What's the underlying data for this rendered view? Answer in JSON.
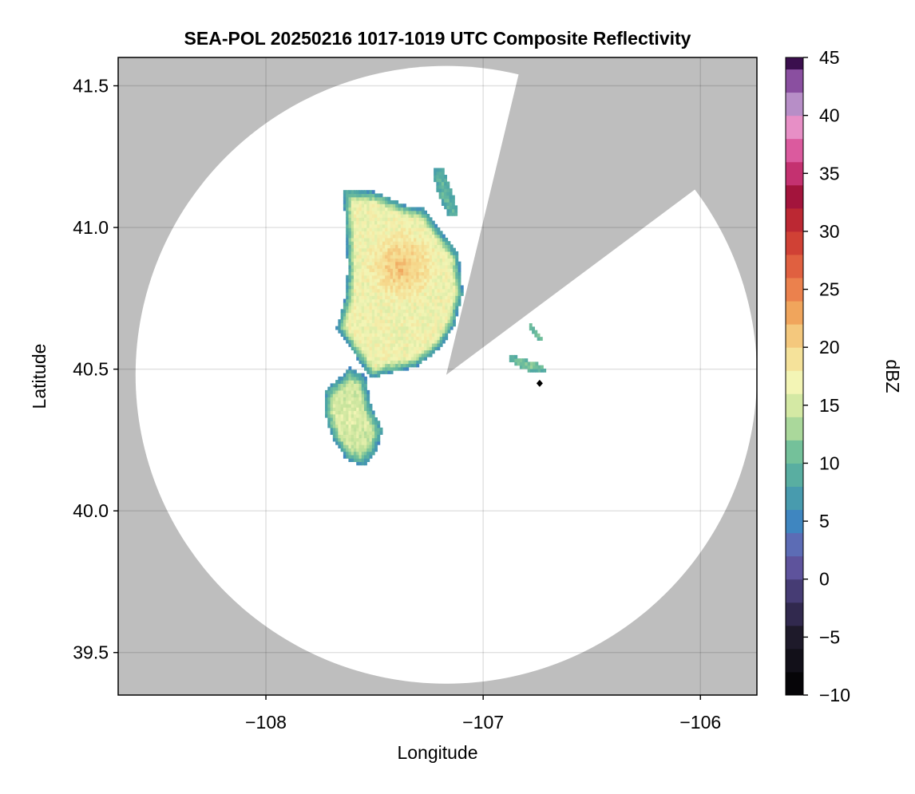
{
  "chart_data": {
    "type": "heatmap",
    "title": "SEA-POL 20250216 1017-1019 UTC Composite Reflectivity",
    "xlabel": "Longitude",
    "ylabel": "Latitude",
    "xlim": [
      -108.68,
      -105.74
    ],
    "ylim": [
      39.35,
      41.6
    ],
    "x_ticks": [
      -108,
      -107,
      -106
    ],
    "x_tick_labels": [
      "−108",
      "−107",
      "−106"
    ],
    "y_ticks": [
      39.5,
      40.0,
      40.5,
      41.0,
      41.5
    ],
    "y_tick_labels": [
      "39.5",
      "40.0",
      "40.5",
      "41.0",
      "41.5"
    ],
    "grid": true,
    "background_color": "#bebebe",
    "radar": {
      "center_lon": -107.17,
      "center_lat": 40.48,
      "range_deg_lat": 1.09,
      "range_deg_lon": 1.43,
      "blocked_sectors": [
        {
          "from_lon": -106.84,
          "from_lat": 41.53,
          "to_lon": -106.05,
          "to_lat": 41.12
        }
      ]
    },
    "radar_marker": {
      "lon": -106.74,
      "lat": 40.45
    },
    "colorbar": {
      "label": "dBZ",
      "min": -10,
      "max": 45,
      "ticks": [
        -10,
        -5,
        0,
        5,
        10,
        15,
        20,
        25,
        30,
        35,
        40,
        45
      ],
      "tick_labels": [
        "−10",
        "−5",
        "0",
        "5",
        "10",
        "15",
        "20",
        "25",
        "30",
        "35",
        "40",
        "45"
      ],
      "step": 2,
      "colors": [
        {
          "v": -10,
          "c": "#000000"
        },
        {
          "v": -5,
          "c": "#1e1a2a"
        },
        {
          "v": -2,
          "c": "#3a3060"
        },
        {
          "v": 2,
          "c": "#6a5fb0"
        },
        {
          "v": 5,
          "c": "#3f86c0"
        },
        {
          "v": 8,
          "c": "#4ca5a5"
        },
        {
          "v": 11,
          "c": "#74c19a"
        },
        {
          "v": 14,
          "c": "#c5e39b"
        },
        {
          "v": 17,
          "c": "#f3f5b5"
        },
        {
          "v": 20,
          "c": "#f6d98d"
        },
        {
          "v": 23,
          "c": "#f0a55c"
        },
        {
          "v": 26,
          "c": "#e86f45"
        },
        {
          "v": 30,
          "c": "#c8322f"
        },
        {
          "v": 33,
          "c": "#a3143c"
        },
        {
          "v": 36,
          "c": "#d53f8a"
        },
        {
          "v": 39,
          "c": "#e78fc6"
        },
        {
          "v": 41,
          "c": "#b78ec7"
        },
        {
          "v": 43,
          "c": "#8a4fa0"
        },
        {
          "v": 45,
          "c": "#3b0f4e"
        }
      ]
    },
    "echoes": [
      {
        "name": "main-echo-north",
        "polygon": [
          [
            -107.65,
            41.13
          ],
          [
            -107.5,
            41.12
          ],
          [
            -107.35,
            41.07
          ],
          [
            -107.28,
            41.06
          ],
          [
            -107.2,
            40.98
          ],
          [
            -107.12,
            40.9
          ],
          [
            -107.1,
            40.76
          ],
          [
            -107.14,
            40.65
          ],
          [
            -107.2,
            40.57
          ],
          [
            -107.32,
            40.5
          ],
          [
            -107.45,
            40.48
          ],
          [
            -107.52,
            40.46
          ],
          [
            -107.6,
            40.55
          ],
          [
            -107.68,
            40.64
          ],
          [
            -107.64,
            40.75
          ],
          [
            -107.63,
            40.85
          ],
          [
            -107.64,
            41.0
          ]
        ],
        "core": {
          "lon": -107.38,
          "lat": 40.86,
          "dbz": 22
        },
        "edge_dbz": 6,
        "body_dbz": 17
      },
      {
        "name": "main-echo-south",
        "polygon": [
          [
            -107.73,
            40.42
          ],
          [
            -107.62,
            40.5
          ],
          [
            -107.55,
            40.47
          ],
          [
            -107.52,
            40.36
          ],
          [
            -107.47,
            40.28
          ],
          [
            -107.5,
            40.2
          ],
          [
            -107.56,
            40.15
          ],
          [
            -107.64,
            40.18
          ],
          [
            -107.7,
            40.25
          ],
          [
            -107.74,
            40.35
          ]
        ],
        "core": {
          "lon": -107.62,
          "lat": 40.33,
          "dbz": 16
        },
        "edge_dbz": 6,
        "body_dbz": 14
      },
      {
        "name": "band-north",
        "polygon": [
          [
            -107.24,
            41.2
          ],
          [
            -107.19,
            41.2
          ],
          [
            -107.14,
            41.1
          ],
          [
            -107.12,
            41.04
          ],
          [
            -107.16,
            41.03
          ],
          [
            -107.21,
            41.1
          ]
        ],
        "core": {
          "lon": -107.19,
          "lat": 41.12,
          "dbz": 11
        },
        "edge_dbz": 8,
        "body_dbz": 11
      },
      {
        "name": "east-cell",
        "polygon": [
          [
            -106.88,
            40.55
          ],
          [
            -106.82,
            40.53
          ],
          [
            -106.74,
            40.51
          ],
          [
            -106.72,
            40.49
          ],
          [
            -106.8,
            40.49
          ],
          [
            -106.88,
            40.52
          ]
        ],
        "core": {
          "lon": -106.8,
          "lat": 40.51,
          "dbz": 15
        },
        "edge_dbz": 8,
        "body_dbz": 13
      },
      {
        "name": "east-cell-north",
        "polygon": [
          [
            -106.8,
            40.67
          ],
          [
            -106.76,
            40.63
          ],
          [
            -106.73,
            40.6
          ],
          [
            -106.75,
            40.59
          ],
          [
            -106.79,
            40.63
          ]
        ],
        "core": {
          "lon": -106.76,
          "lat": 40.62,
          "dbz": 13
        },
        "edge_dbz": 10,
        "body_dbz": 13
      }
    ]
  }
}
